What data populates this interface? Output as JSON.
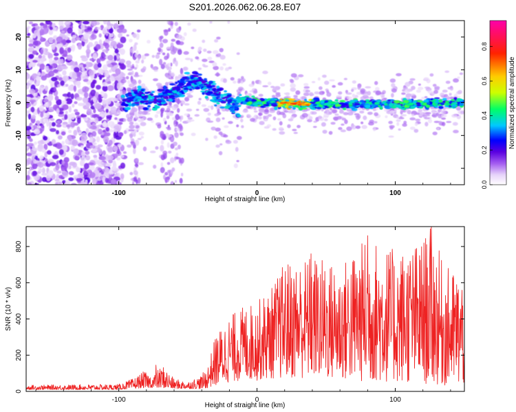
{
  "title": "S201.2026.062.06.28.E07",
  "chart_data": [
    {
      "type": "heatmap",
      "xlabel": "Height of straight line (km)",
      "ylabel": "Frequency (Hz)",
      "xlim": [
        -167,
        150
      ],
      "ylim": [
        -25,
        25
      ],
      "x_ticks": [
        -100,
        0,
        100
      ],
      "x_tick_labels": [
        "-100",
        "0",
        "100"
      ],
      "y_ticks": [
        -20,
        -10,
        0,
        10,
        20
      ],
      "y_tick_labels": [
        "-20",
        "-10",
        "0",
        "10",
        "20"
      ],
      "colorbar": {
        "label": "Normalized spectral amplitude",
        "range": [
          0,
          0.95
        ],
        "ticks": [
          0,
          0.2,
          0.4,
          0.6,
          0.8
        ],
        "tick_labels": [
          "0.0",
          "0.2",
          "0.4",
          "0.6",
          "0.8"
        ],
        "colors": [
          "#ffffff",
          "#e7d4fa",
          "#a35cf0",
          "#5a00e0",
          "#0000ff",
          "#00c8ff",
          "#00ff66",
          "#ccff00",
          "#ffcc00",
          "#ff2200",
          "#ff00aa"
        ]
      },
      "trace": [
        {
          "x": -95,
          "f": 0
        },
        {
          "x": -85,
          "f": 2
        },
        {
          "x": -75,
          "f": 1
        },
        {
          "x": -65,
          "f": 2
        },
        {
          "x": -50,
          "f": 6
        },
        {
          "x": -42,
          "f": 7
        },
        {
          "x": -32,
          "f": 3
        },
        {
          "x": -22,
          "f": 1
        },
        {
          "x": -14,
          "f": -2
        },
        {
          "x": -12,
          "f": 1
        },
        {
          "x": 0,
          "f": 0
        },
        {
          "x": 50,
          "f": -0.5
        },
        {
          "x": 100,
          "f": -0.5
        },
        {
          "x": 148,
          "f": 0
        }
      ]
    },
    {
      "type": "line",
      "xlabel": "Height of straight line (km)",
      "ylabel": "SNR (10 * v/v)",
      "xlim": [
        -167,
        150
      ],
      "ylim": [
        0,
        910
      ],
      "x_ticks": [
        -100,
        0,
        100
      ],
      "x_tick_labels": [
        "-100",
        "0",
        "100"
      ],
      "y_ticks": [
        0,
        200,
        400,
        600,
        800
      ],
      "y_tick_labels": [
        "0",
        "200",
        "400",
        "600",
        "800"
      ],
      "color": "#ee2222",
      "envelope": [
        {
          "x": -167,
          "lo": 10,
          "hi": 35
        },
        {
          "x": -100,
          "lo": 10,
          "hi": 40
        },
        {
          "x": -90,
          "lo": 15,
          "hi": 70
        },
        {
          "x": -82,
          "lo": 20,
          "hi": 110
        },
        {
          "x": -76,
          "lo": 20,
          "hi": 90
        },
        {
          "x": -68,
          "lo": 20,
          "hi": 145
        },
        {
          "x": -60,
          "lo": 15,
          "hi": 70
        },
        {
          "x": -50,
          "lo": 15,
          "hi": 55
        },
        {
          "x": -40,
          "lo": 15,
          "hi": 90
        },
        {
          "x": -35,
          "lo": 20,
          "hi": 160
        },
        {
          "x": -30,
          "lo": 30,
          "hi": 310
        },
        {
          "x": -20,
          "lo": 50,
          "hi": 420
        },
        {
          "x": -10,
          "lo": 60,
          "hi": 470
        },
        {
          "x": 0,
          "lo": 60,
          "hi": 500
        },
        {
          "x": 10,
          "lo": 70,
          "hi": 570
        },
        {
          "x": 20,
          "lo": 70,
          "hi": 720
        },
        {
          "x": 30,
          "lo": 70,
          "hi": 730
        },
        {
          "x": 40,
          "lo": 70,
          "hi": 760
        },
        {
          "x": 60,
          "lo": 60,
          "hi": 700
        },
        {
          "x": 80,
          "lo": 50,
          "hi": 860
        },
        {
          "x": 100,
          "lo": 50,
          "hi": 780
        },
        {
          "x": 118,
          "lo": 40,
          "hi": 830
        },
        {
          "x": 126,
          "lo": 40,
          "hi": 910
        },
        {
          "x": 135,
          "lo": 30,
          "hi": 700
        },
        {
          "x": 150,
          "lo": 30,
          "hi": 640
        }
      ],
      "peaks": [
        {
          "x": -73,
          "y": 145
        },
        {
          "x": 39,
          "y": 760
        },
        {
          "x": 80,
          "y": 860
        },
        {
          "x": 126,
          "y": 910
        }
      ]
    }
  ]
}
